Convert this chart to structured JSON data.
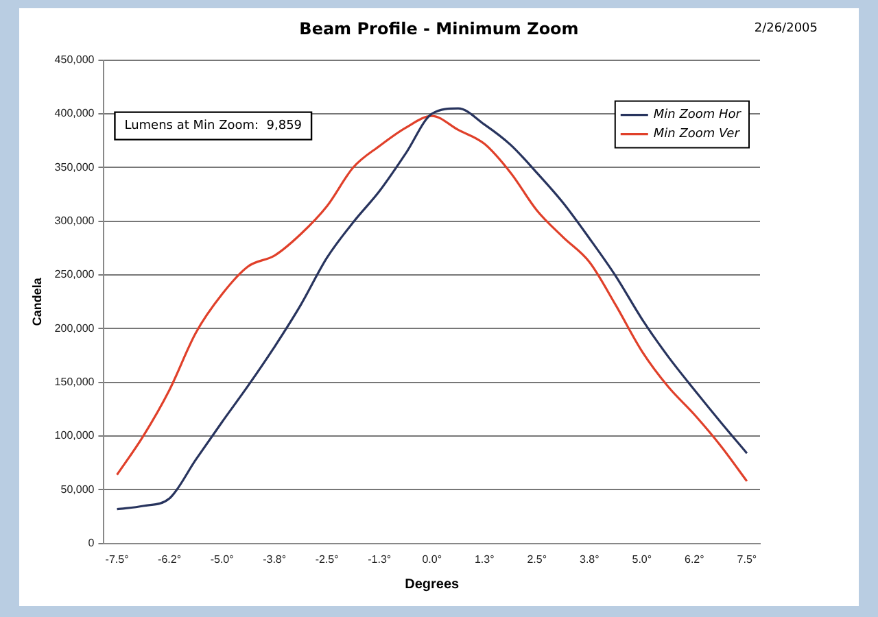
{
  "chart_data": {
    "type": "line",
    "title": "Beam Profile - Minimum Zoom",
    "xlabel": "Degrees",
    "ylabel": "Candela",
    "annotations": [
      "2/26/2005",
      "Lumens at Min Zoom:  9,859"
    ],
    "categories": [
      "-7.5°",
      null,
      "-6.2°",
      null,
      "-5.0°",
      null,
      "-3.8°",
      null,
      "-2.5°",
      null,
      "-1.3°",
      null,
      "0.0°",
      null,
      "1.3°",
      null,
      "2.5°",
      null,
      "3.8°",
      null,
      "5.0°",
      null,
      "6.2°",
      null,
      "7.5°"
    ],
    "series": [
      {
        "name": "Min Zoom Hor",
        "color": "#28345e",
        "values": [
          32000,
          35000,
          42000,
          78000,
          113000,
          147000,
          183000,
          222000,
          266000,
          299000,
          328000,
          363000,
          400000,
          405000,
          390000,
          371000,
          345000,
          317000,
          284000,
          249000,
          209000,
          174000,
          143000,
          113000,
          84000
        ]
      },
      {
        "name": "Min Zoom Ver",
        "color": "#e0402a",
        "values": [
          64000,
          100000,
          143000,
          196000,
          232000,
          258000,
          268000,
          288000,
          314000,
          350000,
          370000,
          387000,
          398000,
          385000,
          372000,
          345000,
          310000,
          285000,
          262000,
          222000,
          179000,
          146000,
          120000,
          91000,
          58000
        ]
      }
    ],
    "ylim": [
      0,
      450000
    ],
    "yticks": [
      0,
      {
        "value": 50000,
        "label": "50,000"
      },
      {
        "value": 100000,
        "label": "100,000"
      },
      {
        "value": 150000,
        "label": "150,000"
      },
      {
        "value": 200000,
        "label": "200,000"
      },
      {
        "value": 250000,
        "label": "250,000"
      },
      {
        "value": 300000,
        "label": "300,000"
      },
      {
        "value": 350000,
        "label": "350,000"
      },
      {
        "value": 400000,
        "label": "400,000"
      },
      {
        "value": 450000,
        "label": "450,000"
      }
    ],
    "grid": "y",
    "legend": "top right",
    "marker": "none",
    "line_style": "solid"
  }
}
